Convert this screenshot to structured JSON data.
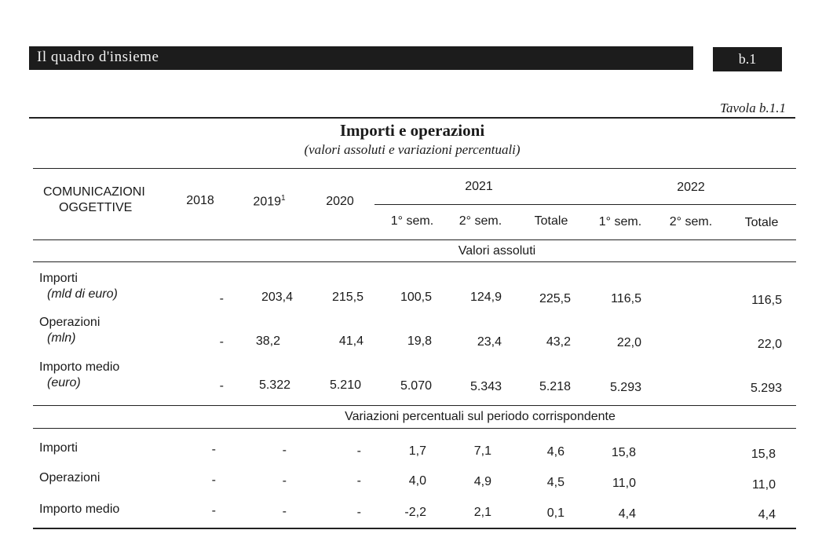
{
  "header": {
    "section_title": "Il quadro d'insieme",
    "section_code": "b.1"
  },
  "table": {
    "ref": "Tavola b.1.1",
    "title": "Importi e operazioni",
    "subtitle": "(valori assoluti e variazioni percentuali)",
    "row_header": [
      "COMUNICAZIONI",
      "OGGETTIVE"
    ],
    "years": {
      "y2018": "2018",
      "y2019": "2019",
      "y2019_note": "1",
      "y2020": "2020",
      "y2021": "2021",
      "y2022": "2022"
    },
    "subcols": {
      "sem1": "1° sem.",
      "sem2": "2° sem.",
      "totale": "Totale"
    },
    "section_abs": "Valori assoluti",
    "section_var": "Variazioni percentuali sul periodo corrispondente",
    "abs_rows": [
      {
        "label": "Importi",
        "unit": "(mld di euro)",
        "values": [
          "-",
          "203,4",
          "215,5",
          "100,5",
          "124,9",
          "225,5",
          "116,5",
          "",
          "116,5"
        ]
      },
      {
        "label": "Operazioni",
        "unit": "(mln)",
        "values": [
          "-",
          "38,2",
          "41,4",
          "19,8",
          "23,4",
          "43,2",
          "22,0",
          "",
          "22,0"
        ]
      },
      {
        "label": "Importo medio",
        "unit": "(euro)",
        "values": [
          "-",
          "5.322",
          "5.210",
          "5.070",
          "5.343",
          "5.218",
          "5.293",
          "",
          "5.293"
        ]
      }
    ],
    "var_rows": [
      {
        "label": "Importi",
        "values": [
          "-",
          "-",
          "-",
          "1,7",
          "7,1",
          "4,6",
          "15,8",
          "",
          "15,8"
        ]
      },
      {
        "label": "Operazioni",
        "values": [
          "-",
          "-",
          "-",
          "4,0",
          "4,9",
          "4,5",
          "11,0",
          "",
          "11,0"
        ]
      },
      {
        "label": "Importo medio",
        "values": [
          "-",
          "-",
          "-",
          "-2,2",
          "2,1",
          "0,1",
          "4,4",
          "",
          "4,4"
        ]
      }
    ]
  }
}
